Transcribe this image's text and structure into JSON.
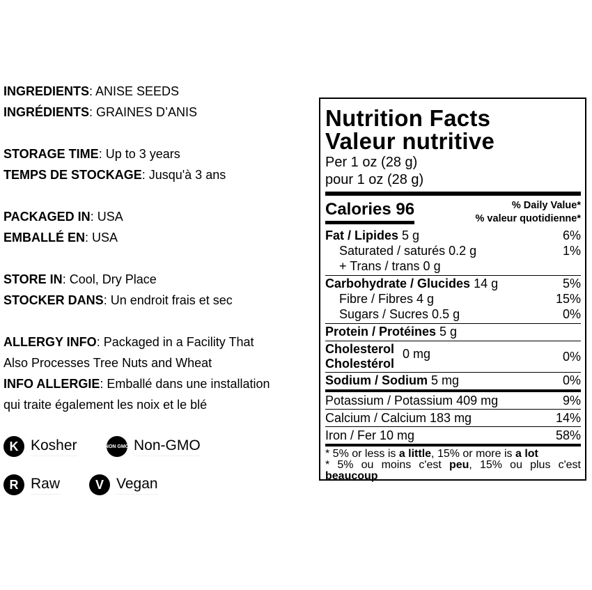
{
  "info": [
    {
      "label": "INGREDIENTS",
      "value": ": ANISE SEEDS"
    },
    {
      "label": "INGRÉDIENTS",
      "value": ": GRAINES D’ANIS"
    },
    {
      "label": "STORAGE TIME",
      "value": ": Up to 3 years"
    },
    {
      "label": "TEMPS DE STOCKAGE",
      "value": ": Jusqu'à 3 ans"
    },
    {
      "label": "PACKAGED IN",
      "value": ": USA"
    },
    {
      "label": "EMBALLÉ EN",
      "value": ": USA"
    },
    {
      "label": "STORE IN",
      "value": ": Cool, Dry Place"
    },
    {
      "label": "STOCKER DANS",
      "value": ": Un endroit frais et sec"
    },
    {
      "label": "ALLERGY INFO",
      "value": ": Packaged in a Facility That"
    },
    {
      "label": "",
      "value": "Also Processes Tree Nuts and Wheat"
    },
    {
      "label": "INFO ALLERGIE",
      "value": ": Emballé dans une installation"
    },
    {
      "label": "",
      "value": "qui traite également les noix et le blé"
    }
  ],
  "badges": [
    {
      "icon": "K",
      "label": "Kosher"
    },
    {
      "icon": "NON GMO",
      "label": "Non-GMO"
    },
    {
      "icon": "R",
      "label": "Raw"
    },
    {
      "icon": "V",
      "label": "Vegan"
    }
  ],
  "label": {
    "title_en": "Nutrition Facts",
    "title_fr": "Valeur nutritive",
    "serving_en": "Per 1 oz (28 g)",
    "serving_fr": "pour 1 oz (28 g)",
    "calories": "Calories 96",
    "dv_en": "% Daily Value*",
    "dv_fr": "% valeur quotidienne*",
    "fat": {
      "name": "Fat / Lipides",
      "amount": " 5 g",
      "dv": "6%"
    },
    "sat": {
      "name": "Saturated / saturés 0.2 g",
      "dv": "1%"
    },
    "trans": {
      "name": "+ Trans / trans 0 g"
    },
    "carb": {
      "name": "Carbohydrate / Glucides",
      "amount": " 14 g",
      "dv": "5%"
    },
    "fibre": {
      "name": "Fibre / Fibres 4 g",
      "dv": "15%"
    },
    "sugars": {
      "name": "Sugars / Sucres 0.5 g",
      "dv": "0%"
    },
    "protein": {
      "name": "Protein / Protéines",
      "amount": " 5 g"
    },
    "chol": {
      "name_en": "Cholesterol",
      "name_fr": "Cholestérol",
      "amount": "0 mg",
      "dv": "0%"
    },
    "sodium": {
      "name": "Sodium / Sodium",
      "amount": " 5 mg",
      "dv": "0%"
    },
    "potassium": {
      "name": "Potassium / Potassium 409 mg",
      "dv": "9%"
    },
    "calcium": {
      "name": "Calcium / Calcium 183 mg",
      "dv": "14%"
    },
    "iron": {
      "name": "Iron / Fer 10 mg",
      "dv": "58%"
    },
    "foot_en": [
      "* 5% or less is ",
      "a little",
      ", 15% or more is ",
      "a lot"
    ],
    "foot_fr": [
      "* 5% ou moins c'est ",
      "peu",
      ", 15% ou plus c'est ",
      "beaucoup"
    ]
  }
}
